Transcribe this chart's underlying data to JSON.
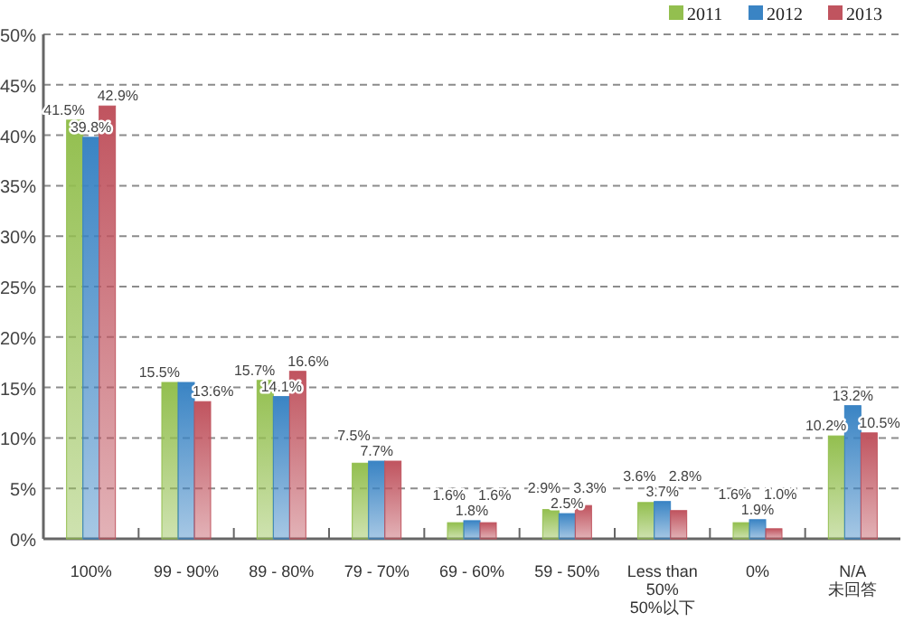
{
  "chart_data": {
    "type": "bar",
    "categories": [
      "100%",
      "99 - 90%",
      "89 - 80%",
      "79 - 70%",
      "69 - 60%",
      "59 - 50%",
      "Less than\n50%\n50%以下",
      "0%",
      "N/A\n未回答"
    ],
    "series": [
      {
        "name": "2011",
        "color": "#93bf4f",
        "values": [
          41.5,
          15.5,
          15.7,
          7.5,
          1.6,
          2.9,
          3.6,
          1.6,
          10.2
        ],
        "value_labels": [
          "41.5%",
          "15.5%",
          "15.7%",
          "7.5%",
          "1.6%",
          "2.9%",
          "3.6%",
          "1.6%",
          "10.2%"
        ]
      },
      {
        "name": "2012",
        "color": "#3a84c4",
        "values": [
          39.8,
          15.5,
          14.1,
          7.7,
          1.8,
          2.5,
          3.7,
          1.9,
          13.2
        ],
        "value_labels": [
          "39.8%",
          null,
          "14.1%",
          "7.7%",
          "1.8%",
          "2.5%",
          "3.7%",
          "1.9%",
          "13.2%"
        ]
      },
      {
        "name": "2013",
        "color": "#c0545f",
        "values": [
          42.9,
          13.6,
          16.6,
          7.7,
          1.6,
          3.3,
          2.8,
          1.0,
          10.5
        ],
        "value_labels": [
          "42.9%",
          "13.6%",
          "16.6%",
          null,
          "1.6%",
          "3.3%",
          "2.8%",
          "1.0%",
          "10.5%"
        ]
      }
    ],
    "ylim": [
      0,
      50
    ],
    "yticks": [
      {
        "value": 0,
        "label": "0%"
      },
      {
        "value": 5,
        "label": "5%"
      },
      {
        "value": 10,
        "label": "10%"
      },
      {
        "value": 15,
        "label": "15%"
      },
      {
        "value": 20,
        "label": "20%"
      },
      {
        "value": 25,
        "label": "25%"
      },
      {
        "value": 30,
        "label": "30%"
      },
      {
        "value": 35,
        "label": "35%"
      },
      {
        "value": 40,
        "label": "40%"
      },
      {
        "value": 45,
        "label": "45%"
      },
      {
        "value": 50,
        "label": "50%"
      }
    ],
    "grid": "y",
    "legend": "top right"
  }
}
